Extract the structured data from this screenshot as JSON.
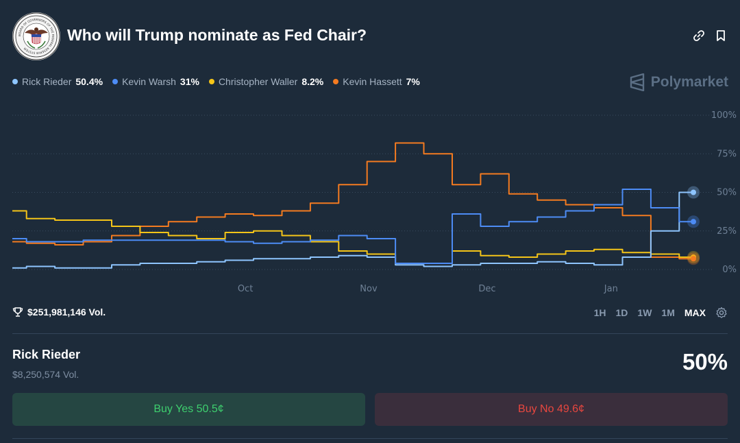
{
  "header": {
    "title": "Who will Trump nominate as Fed Chair?",
    "seal_text": "BOARD OF GOVERNORS OF THE FEDERAL RESERVE SYSTEM"
  },
  "legend": [
    {
      "name": "Rick Rieder",
      "pct": "50.4%",
      "color": "#8ec5ff"
    },
    {
      "name": "Kevin Warsh",
      "pct": "31%",
      "color": "#4d8cf5"
    },
    {
      "name": "Christopher Waller",
      "pct": "8.2%",
      "color": "#f5c518"
    },
    {
      "name": "Kevin Hassett",
      "pct": "7%",
      "color": "#f47b20"
    }
  ],
  "brand": {
    "name": "Polymarket"
  },
  "chart_data": {
    "type": "line",
    "x_tick_labels": [
      "Oct",
      "Nov",
      "Dec",
      "Jan"
    ],
    "y_tick_labels": [
      "100%",
      "75%",
      "50%",
      "25%",
      "0%"
    ],
    "ylim": [
      0,
      100
    ],
    "grid": true,
    "x": [
      "Sep 1",
      "Sep 8",
      "Sep 15",
      "Sep 22",
      "Sep 29",
      "Oct 6",
      "Oct 13",
      "Oct 20",
      "Oct 27",
      "Nov 3",
      "Nov 10",
      "Nov 17",
      "Nov 24",
      "Nov 30",
      "Dec 1",
      "Dec 8",
      "Dec 15",
      "Dec 22",
      "Dec 29",
      "Jan 5",
      "Jan 12",
      "Jan 19",
      "Jan 24",
      "Jan 26",
      "Jan 28"
    ],
    "series": [
      {
        "name": "Rick Rieder",
        "color": "#8ec5ff",
        "values": [
          1,
          2,
          1,
          1,
          3,
          4,
          4,
          5,
          6,
          7,
          7,
          8,
          9,
          8,
          3,
          2,
          3,
          4,
          4,
          5,
          4,
          3,
          8,
          25,
          50
        ]
      },
      {
        "name": "Kevin Warsh",
        "color": "#4d8cf5",
        "values": [
          20,
          18,
          18,
          19,
          19,
          19,
          19,
          19,
          18,
          17,
          18,
          19,
          22,
          20,
          4,
          4,
          36,
          28,
          31,
          34,
          38,
          42,
          52,
          40,
          31
        ]
      },
      {
        "name": "Christopher Waller",
        "color": "#f5c518",
        "values": [
          38,
          33,
          32,
          32,
          28,
          24,
          22,
          20,
          24,
          25,
          22,
          18,
          12,
          10,
          4,
          4,
          12,
          9,
          8,
          10,
          12,
          13,
          11,
          10,
          8
        ]
      },
      {
        "name": "Kevin Hassett",
        "color": "#f47b20",
        "values": [
          18,
          17,
          16,
          18,
          22,
          28,
          31,
          34,
          36,
          35,
          38,
          43,
          55,
          70,
          82,
          75,
          55,
          62,
          49,
          45,
          42,
          40,
          35,
          8,
          7
        ]
      }
    ]
  },
  "volume": {
    "total": "$251,981,146 Vol."
  },
  "ranges": [
    "1H",
    "1D",
    "1W",
    "1M",
    "MAX"
  ],
  "active_range": "MAX",
  "outcome": {
    "name": "Rick Rieder",
    "vol": "$8,250,574 Vol.",
    "pct": "50%"
  },
  "buttons": {
    "yes": "Buy Yes 50.5¢",
    "no": "Buy No 49.6¢"
  }
}
